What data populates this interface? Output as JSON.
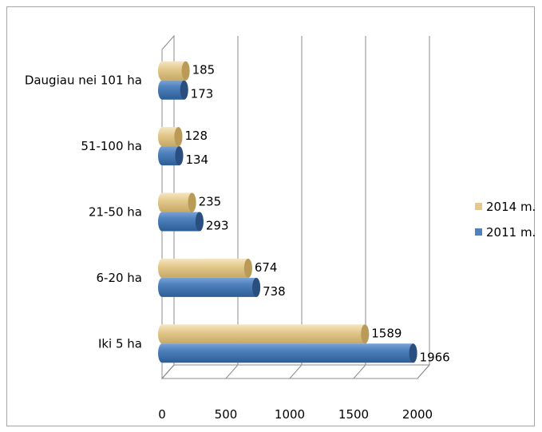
{
  "chart_data": {
    "type": "bar",
    "orientation": "horizontal",
    "categories": [
      "Iki 5 ha",
      "6-20 ha",
      "21-50 ha",
      "51-100 ha",
      "Daugiau nei 101 ha"
    ],
    "series": [
      {
        "name": "2011 m.",
        "values": [
          1966,
          738,
          293,
          134,
          173
        ],
        "color": "#4f81bd"
      },
      {
        "name": "2014 m.",
        "values": [
          1589,
          674,
          235,
          128,
          185
        ],
        "color": "#e3c98d"
      }
    ],
    "x_ticks": [
      "0",
      "500",
      "1000",
      "1500",
      "2000"
    ],
    "xlim": [
      0,
      2000
    ],
    "grid": true,
    "legend": "right",
    "data_labels": true,
    "style": "3d-cylinder"
  }
}
